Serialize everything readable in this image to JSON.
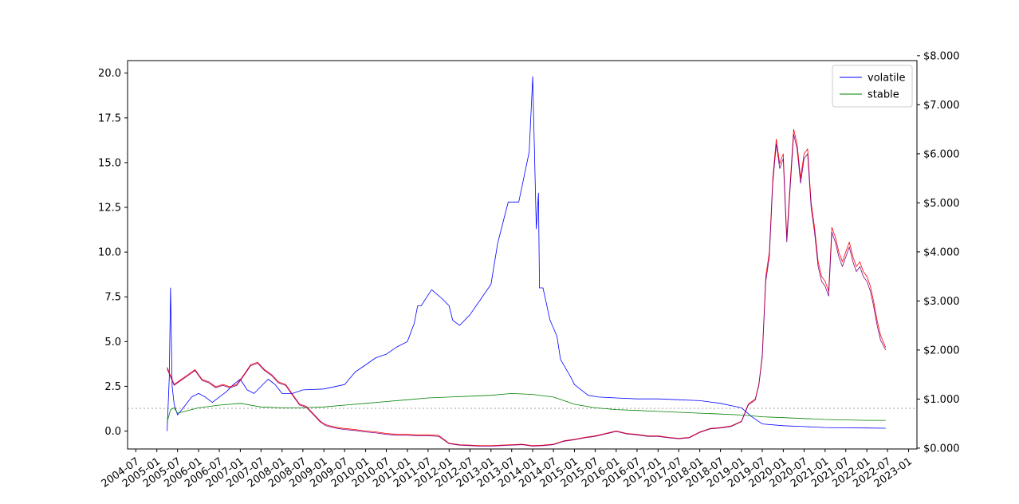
{
  "chart_data": {
    "type": "line",
    "title": "",
    "xlabel": "",
    "ylabel": "",
    "y2label": "",
    "xlim": [
      "2004-04-20",
      "2023-03-15"
    ],
    "ylim": [
      -1.0,
      20.7
    ],
    "y2lim": [
      -0.0175,
      7.9
    ],
    "grid": false,
    "legend_position": "top-right",
    "x_tick_labels": [
      "2004-07",
      "2005-01",
      "2005-07",
      "2006-01",
      "2006-07",
      "2007-01",
      "2007-07",
      "2008-01",
      "2008-07",
      "2009-01",
      "2009-07",
      "2010-01",
      "2010-07",
      "2011-01",
      "2011-07",
      "2012-01",
      "2012-07",
      "2013-01",
      "2013-07",
      "2014-01",
      "2014-07",
      "2015-01",
      "2015-07",
      "2016-01",
      "2016-07",
      "2017-01",
      "2017-07",
      "2018-01",
      "2018-07",
      "2019-01",
      "2019-07",
      "2020-01",
      "2020-07",
      "2021-01",
      "2021-07",
      "2022-01",
      "2022-07",
      "2023-01"
    ],
    "y_tick_labels": [
      "0.0",
      "2.5",
      "5.0",
      "7.5",
      "10.0",
      "12.5",
      "15.0",
      "17.5",
      "20.0"
    ],
    "y2_tick_labels": [
      "$0.000",
      "$1.000",
      "$2.000",
      "$3.000",
      "$4.000",
      "$5.000",
      "$6.000",
      "$7.000",
      "$8.000"
    ],
    "reference_line": {
      "axis": "left",
      "y": 1.27,
      "style": "dotted",
      "color": "#aaaaaa"
    },
    "series": [
      {
        "name": "volatile",
        "axis": "left",
        "color": "#0000ff",
        "x": [
          "2005-04-01",
          "2005-04-20",
          "2005-05-01",
          "2005-05-15",
          "2005-06-01",
          "2005-07-01",
          "2005-09-01",
          "2005-11-01",
          "2006-01-01",
          "2006-03-01",
          "2006-05-01",
          "2006-07-01",
          "2006-09-01",
          "2006-11-01",
          "2007-01-01",
          "2007-03-01",
          "2007-05-01",
          "2007-07-01",
          "2007-09-01",
          "2007-11-01",
          "2008-01-01",
          "2008-04-01",
          "2008-07-01",
          "2009-01-01",
          "2009-07-01",
          "2009-10-01",
          "2010-01-01",
          "2010-04-01",
          "2010-07-01",
          "2010-10-01",
          "2011-01-01",
          "2011-03-01",
          "2011-04-01",
          "2011-05-01",
          "2011-08-01",
          "2011-11-01",
          "2012-01-01",
          "2012-02-01",
          "2012-04-01",
          "2012-07-01",
          "2013-01-01",
          "2013-03-01",
          "2013-06-01",
          "2013-09-01",
          "2013-12-01",
          "2014-01-01",
          "2014-02-01",
          "2014-02-20",
          "2014-03-01",
          "2014-04-01",
          "2014-06-01",
          "2014-08-01",
          "2014-09-01",
          "2014-12-01",
          "2015-01-01",
          "2015-03-01",
          "2015-05-01",
          "2015-08-01",
          "2016-01-01",
          "2016-07-01",
          "2017-01-01",
          "2017-07-01",
          "2018-01-01",
          "2018-07-01",
          "2019-01-01",
          "2019-04-01",
          "2019-07-01",
          "2020-01-01",
          "2020-07-01",
          "2021-01-01",
          "2021-07-01",
          "2022-01-01",
          "2022-06-15"
        ],
        "values": [
          0.0,
          3.0,
          8.0,
          2.5,
          1.5,
          0.9,
          1.4,
          1.9,
          2.1,
          1.9,
          1.6,
          1.9,
          2.2,
          2.6,
          2.9,
          2.3,
          2.1,
          2.5,
          2.9,
          2.6,
          2.1,
          2.1,
          2.3,
          2.35,
          2.6,
          3.3,
          3.7,
          4.1,
          4.3,
          4.7,
          5.0,
          6.0,
          7.0,
          7.0,
          7.9,
          7.4,
          7.0,
          6.2,
          5.9,
          6.5,
          8.2,
          10.5,
          12.8,
          12.8,
          15.6,
          19.8,
          11.3,
          13.3,
          8.0,
          8.0,
          6.2,
          5.3,
          4.0,
          3.0,
          2.6,
          2.3,
          2.0,
          1.9,
          1.85,
          1.8,
          1.8,
          1.75,
          1.7,
          1.55,
          1.3,
          0.8,
          0.4,
          0.3,
          0.25,
          0.2,
          0.18,
          0.17,
          0.16
        ]
      },
      {
        "name": "stable",
        "axis": "left",
        "color": "#008000",
        "x": [
          "2005-04-01",
          "2005-05-01",
          "2005-06-01",
          "2005-07-01",
          "2005-09-01",
          "2006-01-01",
          "2006-07-01",
          "2007-01-01",
          "2007-07-01",
          "2008-01-01",
          "2008-07-01",
          "2009-01-01",
          "2009-07-01",
          "2010-01-01",
          "2010-07-01",
          "2011-01-01",
          "2011-07-01",
          "2012-01-01",
          "2012-07-01",
          "2013-01-01",
          "2013-07-01",
          "2014-01-01",
          "2014-07-01",
          "2015-01-01",
          "2015-07-01",
          "2016-01-01",
          "2016-07-01",
          "2017-01-01",
          "2017-07-01",
          "2018-01-01",
          "2018-07-01",
          "2019-01-01",
          "2019-07-01",
          "2020-01-01",
          "2020-07-01",
          "2021-01-01",
          "2021-07-01",
          "2022-01-01",
          "2022-06-15"
        ],
        "values": [
          0.5,
          1.2,
          1.3,
          1.0,
          1.1,
          1.3,
          1.45,
          1.55,
          1.35,
          1.3,
          1.3,
          1.35,
          1.45,
          1.55,
          1.65,
          1.75,
          1.85,
          1.9,
          1.95,
          2.0,
          2.1,
          2.05,
          1.9,
          1.5,
          1.3,
          1.2,
          1.15,
          1.1,
          1.05,
          1.0,
          0.95,
          0.9,
          0.8,
          0.75,
          0.7,
          0.65,
          0.62,
          0.6,
          0.6
        ]
      },
      {
        "name": "",
        "axis": "right",
        "color": "#ff0000",
        "x": [
          "2005-04-01",
          "2005-06-01",
          "2005-08-01",
          "2005-10-01",
          "2005-12-01",
          "2006-02-01",
          "2006-04-01",
          "2006-06-01",
          "2006-08-01",
          "2006-10-01",
          "2006-12-01",
          "2007-02-01",
          "2007-04-01",
          "2007-06-01",
          "2007-08-01",
          "2007-10-01",
          "2007-12-01",
          "2008-02-01",
          "2008-04-01",
          "2008-06-01",
          "2008-08-01",
          "2008-10-01",
          "2008-12-01",
          "2009-01-15",
          "2009-03-01",
          "2009-05-01",
          "2009-07-01",
          "2009-10-01",
          "2010-01-01",
          "2010-04-01",
          "2010-07-01",
          "2010-10-01",
          "2011-01-01",
          "2011-04-01",
          "2011-07-01",
          "2011-10-01",
          "2012-01-01",
          "2012-04-01",
          "2012-07-01",
          "2012-10-01",
          "2013-01-01",
          "2013-04-01",
          "2013-07-01",
          "2013-10-01",
          "2014-01-01",
          "2014-04-01",
          "2014-07-01",
          "2014-10-01",
          "2015-01-01",
          "2015-04-01",
          "2015-07-01",
          "2015-10-01",
          "2016-01-01",
          "2016-04-01",
          "2016-07-01",
          "2016-10-01",
          "2017-01-01",
          "2017-04-01",
          "2017-07-01",
          "2017-10-01",
          "2018-01-01",
          "2018-04-01",
          "2018-07-01",
          "2018-10-01",
          "2019-01-01",
          "2019-03-01",
          "2019-05-01",
          "2019-06-01",
          "2019-07-01",
          "2019-08-01",
          "2019-09-01",
          "2019-10-01",
          "2019-11-01",
          "2019-12-01",
          "2020-01-01",
          "2020-02-01",
          "2020-03-01",
          "2020-04-01",
          "2020-05-01",
          "2020-06-01",
          "2020-07-01",
          "2020-08-01",
          "2020-09-01",
          "2020-10-01",
          "2020-11-01",
          "2020-12-01",
          "2021-01-01",
          "2021-02-01",
          "2021-03-01",
          "2021-04-01",
          "2021-05-01",
          "2021-06-01",
          "2021-07-01",
          "2021-08-01",
          "2021-09-01",
          "2021-10-01",
          "2021-11-01",
          "2021-12-01",
          "2022-01-01",
          "2022-02-01",
          "2022-03-01",
          "2022-04-01",
          "2022-05-01",
          "2022-06-15"
        ],
        "values": [
          1.65,
          1.3,
          1.4,
          1.5,
          1.6,
          1.4,
          1.35,
          1.25,
          1.3,
          1.25,
          1.3,
          1.5,
          1.7,
          1.75,
          1.6,
          1.5,
          1.35,
          1.3,
          1.1,
          0.9,
          0.85,
          0.7,
          0.55,
          0.48,
          0.45,
          0.42,
          0.4,
          0.38,
          0.35,
          0.33,
          0.3,
          0.28,
          0.28,
          0.27,
          0.27,
          0.26,
          0.1,
          0.07,
          0.06,
          0.05,
          0.05,
          0.06,
          0.07,
          0.08,
          0.05,
          0.06,
          0.08,
          0.15,
          0.18,
          0.22,
          0.25,
          0.3,
          0.35,
          0.3,
          0.28,
          0.25,
          0.25,
          0.22,
          0.2,
          0.22,
          0.33,
          0.4,
          0.42,
          0.45,
          0.55,
          0.9,
          1.0,
          1.3,
          1.9,
          3.5,
          4.0,
          5.5,
          6.3,
          5.8,
          6.0,
          4.3,
          5.4,
          6.5,
          6.2,
          5.5,
          6.0,
          6.1,
          5.0,
          4.5,
          3.8,
          3.5,
          3.4,
          3.2,
          4.5,
          4.3,
          4.0,
          3.8,
          4.0,
          4.2,
          3.9,
          3.7,
          3.8,
          3.6,
          3.5,
          3.3,
          3.0,
          2.6,
          2.3,
          2.05
        ]
      },
      {
        "name": "",
        "axis": "right",
        "color": "#800080",
        "x": [
          "2005-04-01",
          "2005-06-01",
          "2005-08-01",
          "2005-10-01",
          "2005-12-01",
          "2006-02-01",
          "2006-04-01",
          "2006-06-01",
          "2006-08-01",
          "2006-10-01",
          "2006-12-01",
          "2007-02-01",
          "2007-04-01",
          "2007-06-01",
          "2007-08-01",
          "2007-10-01",
          "2007-12-01",
          "2008-02-01",
          "2008-04-01",
          "2008-06-01",
          "2008-08-01",
          "2008-10-01",
          "2008-12-01",
          "2009-01-15",
          "2009-03-01",
          "2009-05-01",
          "2009-07-01",
          "2009-10-01",
          "2010-01-01",
          "2010-04-01",
          "2010-07-01",
          "2010-10-01",
          "2011-01-01",
          "2011-04-01",
          "2011-07-01",
          "2011-10-01",
          "2012-01-01",
          "2012-04-01",
          "2012-07-01",
          "2012-10-01",
          "2013-01-01",
          "2013-04-01",
          "2013-07-01",
          "2013-10-01",
          "2014-01-01",
          "2014-04-01",
          "2014-07-01",
          "2014-10-01",
          "2015-01-01",
          "2015-04-01",
          "2015-07-01",
          "2015-10-01",
          "2016-01-01",
          "2016-04-01",
          "2016-07-01",
          "2016-10-01",
          "2017-01-01",
          "2017-04-01",
          "2017-07-01",
          "2017-10-01",
          "2018-01-01",
          "2018-04-01",
          "2018-07-01",
          "2018-10-01",
          "2019-01-01",
          "2019-03-01",
          "2019-05-01",
          "2019-06-01",
          "2019-07-01",
          "2019-08-01",
          "2019-09-01",
          "2019-10-01",
          "2019-11-01",
          "2019-12-01",
          "2020-01-01",
          "2020-02-01",
          "2020-03-01",
          "2020-04-01",
          "2020-05-01",
          "2020-06-01",
          "2020-07-01",
          "2020-08-01",
          "2020-09-01",
          "2020-10-01",
          "2020-11-01",
          "2020-12-01",
          "2021-01-01",
          "2021-02-01",
          "2021-03-01",
          "2021-04-01",
          "2021-05-01",
          "2021-06-01",
          "2021-07-01",
          "2021-08-01",
          "2021-09-01",
          "2021-10-01",
          "2021-11-01",
          "2021-12-01",
          "2022-01-01",
          "2022-02-01",
          "2022-03-01",
          "2022-04-01",
          "2022-05-01",
          "2022-06-15"
        ],
        "values": [
          1.62,
          1.28,
          1.38,
          1.48,
          1.58,
          1.38,
          1.33,
          1.23,
          1.28,
          1.23,
          1.28,
          1.48,
          1.68,
          1.73,
          1.58,
          1.48,
          1.33,
          1.28,
          1.08,
          0.88,
          0.83,
          0.68,
          0.53,
          0.46,
          0.43,
          0.4,
          0.38,
          0.36,
          0.33,
          0.31,
          0.28,
          0.26,
          0.26,
          0.25,
          0.25,
          0.24,
          0.09,
          0.06,
          0.05,
          0.04,
          0.04,
          0.05,
          0.06,
          0.07,
          0.04,
          0.05,
          0.07,
          0.14,
          0.17,
          0.21,
          0.24,
          0.29,
          0.34,
          0.29,
          0.27,
          0.24,
          0.24,
          0.21,
          0.19,
          0.21,
          0.32,
          0.39,
          0.41,
          0.44,
          0.54,
          0.88,
          0.98,
          1.28,
          1.85,
          3.4,
          3.9,
          5.4,
          6.2,
          5.7,
          5.9,
          4.2,
          5.3,
          6.4,
          6.1,
          5.4,
          5.9,
          6.0,
          4.9,
          4.4,
          3.7,
          3.4,
          3.3,
          3.1,
          4.4,
          4.2,
          3.9,
          3.7,
          3.9,
          4.1,
          3.8,
          3.6,
          3.7,
          3.5,
          3.4,
          3.2,
          2.9,
          2.5,
          2.2,
          2.0
        ]
      }
    ]
  }
}
